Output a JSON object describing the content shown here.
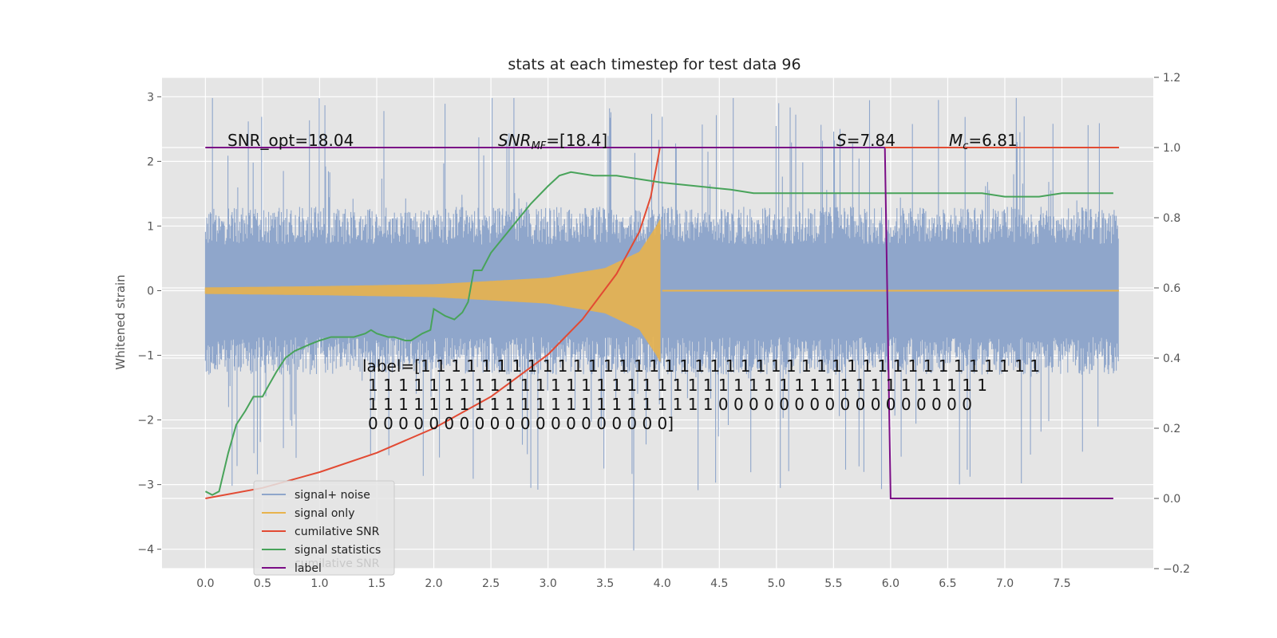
{
  "chart_data": {
    "type": "line",
    "title": "stats at each timestep for test data 96",
    "ylabel": "Whitened strain",
    "xlim": [
      -0.38,
      8.3
    ],
    "ylim": [
      -4.3,
      3.3
    ],
    "y2lim": [
      -0.2,
      1.2
    ],
    "x_ticks": [
      0.0,
      0.5,
      1.0,
      1.5,
      2.0,
      2.5,
      3.0,
      3.5,
      4.0,
      4.5,
      5.0,
      5.5,
      6.0,
      6.5,
      7.0,
      7.5
    ],
    "x_tick_labels": [
      "0.0",
      "0.5",
      "1.0",
      "1.5",
      "2.0",
      "2.5",
      "3.0",
      "3.5",
      "4.0",
      "4.5",
      "5.0",
      "5.5",
      "6.0",
      "6.5",
      "7.0",
      "7.5"
    ],
    "y_ticks": [
      3,
      2,
      1,
      0,
      -1,
      -2,
      -3,
      -4
    ],
    "y_tick_labels": [
      "3",
      "2",
      "1",
      "0",
      "−1",
      "−2",
      "−3",
      "−4"
    ],
    "y2_ticks": [
      1.2,
      1.0,
      0.8,
      0.6,
      0.4,
      0.2,
      0.0,
      -0.2
    ],
    "y2_tick_labels": [
      "1.2",
      "1.0",
      "0.8",
      "0.6",
      "0.4",
      "0.2",
      "0.0",
      "−0.2"
    ],
    "grid": true,
    "legend_placement": "lower-left",
    "colors": {
      "background": "#e5e5e5",
      "grid": "#ffffff",
      "noise": "#8fa6cb",
      "signal": "#e8b34d",
      "cumulative_snr": "#e24a33",
      "signal_statistics": "#48a35a",
      "label": "#7b0d86"
    },
    "noise_envelope": {
      "typical_upper": 1.3,
      "typical_lower": -1.3,
      "max": 2.98,
      "min": -4.02
    },
    "signal_only_envelope": {
      "x": [
        0.0,
        1.0,
        2.0,
        3.0,
        3.5,
        3.8,
        3.95,
        3.98,
        4.0
      ],
      "amplitude": [
        0.05,
        0.07,
        0.1,
        0.2,
        0.35,
        0.6,
        1.0,
        1.1,
        0.0
      ]
    },
    "series": [
      {
        "name": "cumilative SNR",
        "axis": "right",
        "x": [
          0.0,
          0.5,
          1.0,
          1.5,
          2.0,
          2.5,
          3.0,
          3.3,
          3.6,
          3.8,
          3.9,
          3.98
        ],
        "values": [
          0.0,
          0.03,
          0.075,
          0.13,
          0.2,
          0.29,
          0.41,
          0.51,
          0.64,
          0.76,
          0.86,
          1.0
        ]
      },
      {
        "name": "signal statistics",
        "axis": "right",
        "x": [
          0.0,
          0.06,
          0.12,
          0.2,
          0.27,
          0.35,
          0.42,
          0.5,
          0.55,
          0.62,
          0.7,
          0.78,
          0.85,
          0.92,
          1.0,
          1.1,
          1.2,
          1.3,
          1.4,
          1.45,
          1.5,
          1.6,
          1.65,
          1.75,
          1.8,
          1.9,
          1.97,
          2.0,
          2.1,
          2.18,
          2.25,
          2.3,
          2.35,
          2.42,
          2.5,
          2.6,
          2.7,
          2.85,
          3.0,
          3.1,
          3.2,
          3.4,
          3.6,
          3.8,
          4.0,
          4.3,
          4.6,
          4.8,
          5.0,
          5.2,
          5.4,
          5.6,
          5.8,
          6.0,
          6.2,
          6.5,
          6.8,
          7.0,
          7.3,
          7.5,
          7.7,
          7.95
        ],
        "values": [
          0.02,
          0.01,
          0.02,
          0.13,
          0.21,
          0.25,
          0.29,
          0.29,
          0.32,
          0.36,
          0.4,
          0.42,
          0.43,
          0.44,
          0.45,
          0.46,
          0.46,
          0.46,
          0.47,
          0.48,
          0.47,
          0.46,
          0.46,
          0.45,
          0.45,
          0.47,
          0.48,
          0.54,
          0.52,
          0.51,
          0.53,
          0.56,
          0.65,
          0.65,
          0.7,
          0.74,
          0.78,
          0.84,
          0.89,
          0.92,
          0.93,
          0.92,
          0.92,
          0.91,
          0.9,
          0.89,
          0.88,
          0.87,
          0.87,
          0.87,
          0.87,
          0.87,
          0.87,
          0.87,
          0.87,
          0.87,
          0.87,
          0.86,
          0.86,
          0.87,
          0.87,
          0.87
        ]
      },
      {
        "name": "label",
        "axis": "right",
        "x": [
          0.0,
          5.95,
          6.0,
          7.95
        ],
        "values": [
          1.0,
          1.0,
          0.0,
          0.0
        ]
      }
    ],
    "annotations": [
      {
        "name": "snr-opt",
        "text": "SNR_opt=18.04"
      },
      {
        "name": "snr-mf-main",
        "text": "SNR",
        "sub": "MF",
        "rest": "=[18.4]"
      },
      {
        "name": "s",
        "text": "S",
        "rest": "=7.84"
      },
      {
        "name": "mc",
        "text": "M",
        "sub": "c",
        "rest": "=6.81"
      }
    ],
    "label_text": [
      "label=[1 1 1 1 1 1 1 1 1 1 1 1 1 1 1 1 1 1 1 1 1 1 1 1 1 1 1 1 1 1 1 1 1 1 1 1 1 1 1 1 1",
      "1 1 1 1 1 1 1 1 1 1 1 1 1 1 1 1 1 1 1 1 1 1 1 1 1 1 1 1 1 1 1 1 1 1 1 1 1 1 1 1 1",
      "1 1 1 1 1 1 1 1 1 1 1 1 1 1 1 1 1 1 1 1 1 1 1 0 0 0 0 0 0 0 0 0 0 0 0 0 0 0 0 0",
      "0 0 0 0 0 0 0 0 0 0 0 0 0 0 0 0 0 0 0 0]"
    ],
    "legend": [
      {
        "name": "signal+ noise",
        "color": "#8fa6cb"
      },
      {
        "name": "signal only",
        "color": "#e8b34d"
      },
      {
        "name": "cumilative SNR",
        "color": "#e24a33"
      },
      {
        "name": "signal statistics",
        "color": "#48a35a"
      },
      {
        "name": "label",
        "color": "#7b0d86"
      }
    ],
    "legend_ghost_text": "cumilative SNR"
  }
}
